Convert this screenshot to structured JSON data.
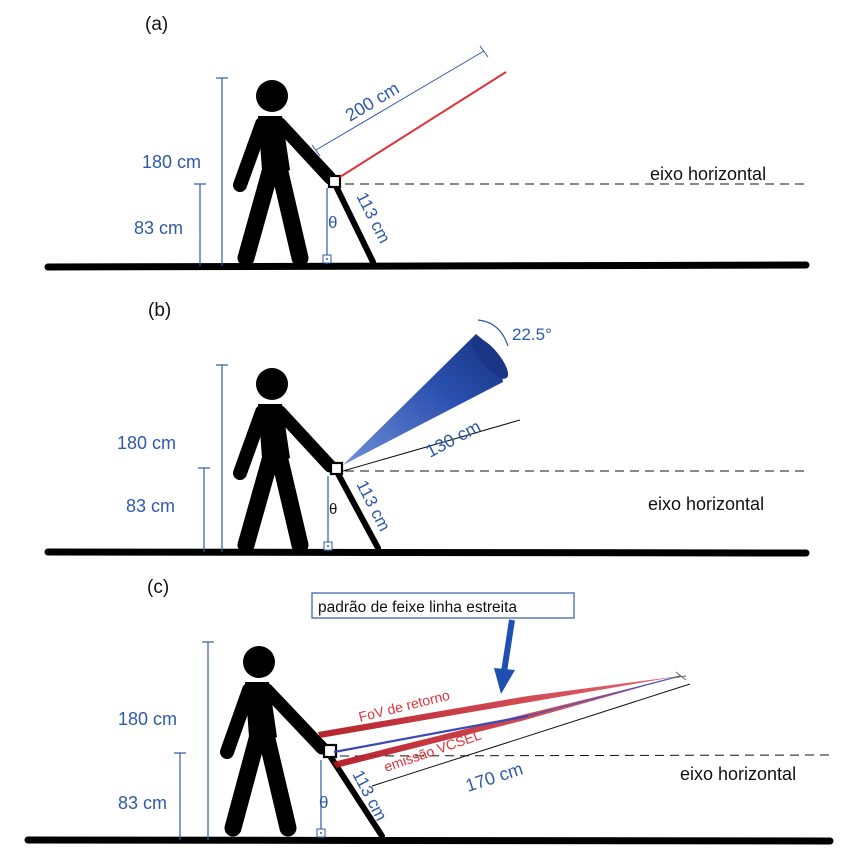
{
  "panels": [
    {
      "label": "(a)",
      "height_total": "180 cm",
      "height_sensor": "83 cm",
      "cane_length": "113 cm",
      "angle_symbol": "θ",
      "beam_length": "200 cm",
      "axis_label": "eixo horizontal"
    },
    {
      "label": "(b)",
      "height_total": "180 cm",
      "height_sensor": "83 cm",
      "cane_length": "113 cm",
      "angle_symbol": "θ",
      "beam_length": "130 cm",
      "cone_angle": "22.5°",
      "axis_label": "eixo horizontal"
    },
    {
      "label": "(c)",
      "height_total": "180 cm",
      "height_sensor": "83 cm",
      "cane_length": "113 cm",
      "angle_symbol": "θ",
      "beam_length": "170 cm",
      "axis_label": "eixo horizontal",
      "callout": "padrão de feixe linha estreita",
      "fov_label": "FoV de retorno",
      "emission_label": "emissão VCSEL"
    }
  ],
  "colors": {
    "dimension_blue": "#2e5aa8",
    "beam_red": "#e0313a",
    "cone_blue": "#1f3f9a",
    "figure_black": "#111111"
  }
}
